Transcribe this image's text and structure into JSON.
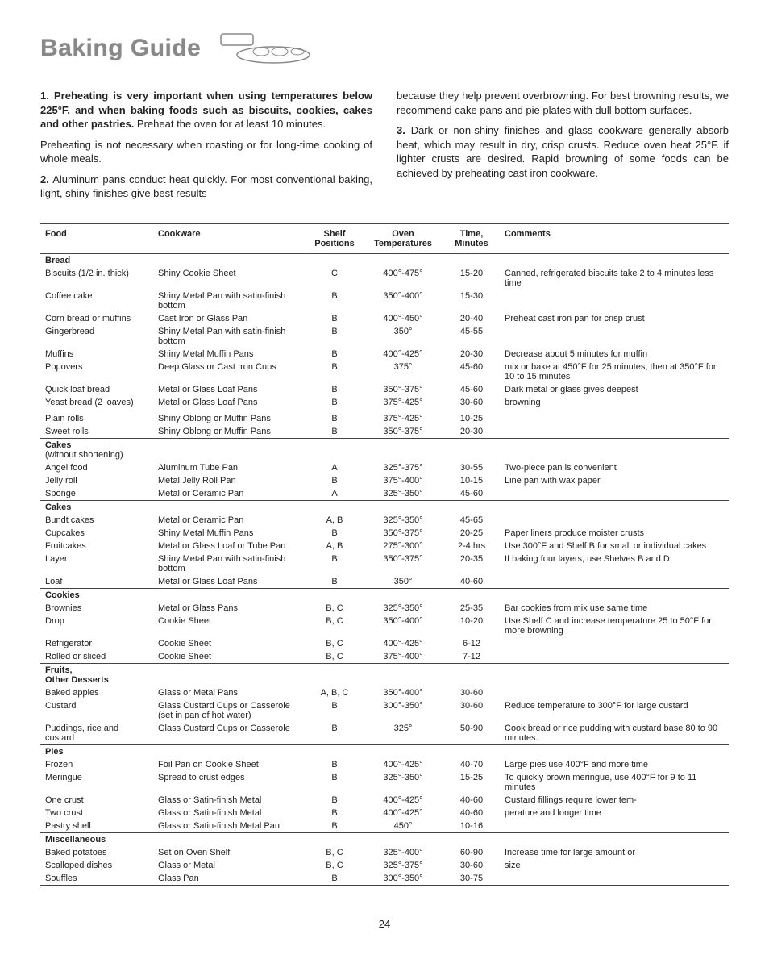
{
  "title": "Baking Guide",
  "intro": {
    "p1_bold": "1. Preheating is very important when using temperatures below 225°F. and when baking foods such as biscuits, cookies, cakes and other pastries.",
    "p1_tail": " Preheat the oven for at least 10 minutes.",
    "p2": "Preheating is not necessary when roasting or for long-time cooking of whole meals.",
    "p3_lead": "2. ",
    "p3": "Aluminum pans conduct heat quickly. For most conventional baking, light, shiny finishes give best results",
    "p4": "because they help prevent overbrowning. For best browning results, we recommend cake pans and pie plates with dull bottom surfaces.",
    "p5_lead": "3. ",
    "p5": "Dark or non-shiny finishes and glass cookware generally absorb heat, which may result in dry, crisp crusts. Reduce oven heat 25°F. if lighter crusts are desired. Rapid browning of some foods can be achieved by preheating cast iron cookware."
  },
  "headers": [
    "Food",
    "Cookware",
    "Shelf Positions",
    "Oven Temperatures",
    "Time, Minutes",
    "Comments"
  ],
  "sections": [
    {
      "name": "Bread",
      "rows": [
        [
          "Biscuits (1/2 in. thick)",
          "Shiny Cookie Sheet",
          "C",
          "400°-475°",
          "15-20",
          "Canned, refrigerated biscuits take 2 to 4 minutes less time"
        ],
        [
          "Coffee cake",
          "Shiny Metal Pan with satin-finish bottom",
          "B",
          "350°-400°",
          "15-30",
          ""
        ],
        [
          "Corn bread or muffins",
          "Cast Iron or Glass Pan",
          "B",
          "400°-450°",
          "20-40",
          "Preheat cast iron pan for crisp crust"
        ],
        [
          "Gingerbread",
          "Shiny Metal Pan with satin-finish bottom",
          "B",
          "350°",
          "45-55",
          ""
        ],
        [
          "Muffins",
          "Shiny Metal Muffin Pans",
          "B",
          "400°-425°",
          "20-30",
          "Decrease about 5 minutes for muffin"
        ],
        [
          "Popovers",
          "Deep Glass or Cast Iron Cups",
          "B",
          "375°",
          "45-60",
          "mix or bake at 450°F for 25 minutes, then at 350°F for 10 to 15 minutes"
        ],
        [
          "Quick loaf bread",
          "Metal or Glass Loaf Pans",
          "B",
          "350°-375°",
          "45-60",
          "Dark metal or glass gives deepest"
        ],
        [
          "Yeast bread (2 loaves)",
          "Metal or Glass Loaf Pans",
          "B",
          "375°-425°",
          "30-60",
          "browning"
        ],
        [
          "",
          "",
          "",
          "",
          "",
          ""
        ],
        [
          "Plain rolls",
          "Shiny Oblong or Muffin Pans",
          "B",
          "375°-425°",
          "10-25",
          ""
        ],
        [
          "Sweet rolls",
          "Shiny Oblong or Muffin Pans",
          "B",
          "350°-375°",
          "20-30",
          ""
        ]
      ]
    },
    {
      "name": "Cakes",
      "subhead": "(without shortening)",
      "rows": [
        [
          "Angel food",
          "Aluminum Tube Pan",
          "A",
          "325°-375°",
          "30-55",
          "Two-piece pan is convenient"
        ],
        [
          "Jelly roll",
          "Metal Jelly Roll Pan",
          "B",
          "375°-400°",
          "10-15",
          "Line pan with wax paper."
        ],
        [
          "Sponge",
          "Metal or Ceramic Pan",
          "A",
          "325°-350°",
          "45-60",
          ""
        ]
      ]
    },
    {
      "name": "Cakes",
      "rows": [
        [
          "Bundt cakes",
          "Metal or Ceramic Pan",
          "A, B",
          "325°-350°",
          "45-65",
          ""
        ],
        [
          "Cupcakes",
          "Shiny Metal Muffin Pans",
          "B",
          "350°-375°",
          "20-25",
          "Paper liners produce moister crusts"
        ],
        [
          "Fruitcakes",
          "Metal or Glass Loaf or Tube Pan",
          "A, B",
          "275°-300°",
          "2-4 hrs",
          "Use 300°F and Shelf B for small or individual cakes"
        ],
        [
          "Layer",
          "Shiny Metal Pan with satin-finish bottom",
          "B",
          "350°-375°",
          "20-35",
          "If baking four layers, use Shelves B and D"
        ],
        [
          "Loaf",
          "Metal or Glass Loaf Pans",
          "B",
          "350°",
          "40-60",
          ""
        ]
      ]
    },
    {
      "name": "Cookies",
      "rows": [
        [
          "Brownies",
          "Metal or Glass Pans",
          "B, C",
          "325°-350°",
          "25-35",
          "Bar cookies from mix use same time"
        ],
        [
          "Drop",
          "Cookie Sheet",
          "B, C",
          "350°-400°",
          "10-20",
          "Use Shelf C and increase temperature 25 to 50°F for more browning"
        ],
        [
          "Refrigerator",
          "Cookie Sheet",
          "B, C",
          "400°-425°",
          "6-12",
          ""
        ],
        [
          "Rolled or sliced",
          "Cookie Sheet",
          "B, C",
          "375°-400°",
          "7-12",
          ""
        ]
      ]
    },
    {
      "name": "Fruits,",
      "subhead": "Other Desserts",
      "subhead_bold": true,
      "rows": [
        [
          "Baked apples",
          "Glass or Metal Pans",
          "A, B, C",
          "350°-400°",
          "30-60",
          ""
        ],
        [
          "Custard",
          "Glass Custard Cups or Casserole (set in pan of hot water)",
          "B",
          "300°-350°",
          "30-60",
          "Reduce temperature to 300°F for large custard"
        ],
        [
          "Puddings, rice and custard",
          "Glass Custard Cups or Casserole",
          "B",
          "325°",
          "50-90",
          "Cook bread or rice pudding with custard base 80 to 90 minutes."
        ]
      ]
    },
    {
      "name": "Pies",
      "rows": [
        [
          "Frozen",
          "Foil Pan on Cookie Sheet",
          "B",
          "400°-425°",
          "40-70",
          "Large pies use 400°F and more time"
        ],
        [
          "Meringue",
          "Spread to crust edges",
          "B",
          "325°-350°",
          "15-25",
          "To quickly brown meringue, use 400°F for 9 to 11 minutes"
        ],
        [
          "One crust",
          "Glass or Satin-finish Metal",
          "B",
          "400°-425°",
          "40-60",
          "Custard fillings require lower tem-"
        ],
        [
          "Two crust",
          "Glass or Satin-finish Metal",
          "B",
          "400°-425°",
          "40-60",
          "perature and longer time"
        ],
        [
          "Pastry shell",
          "Glass or Satin-finish Metal Pan",
          "B",
          "450°",
          "10-16",
          ""
        ]
      ]
    },
    {
      "name": "Miscellaneous",
      "rows": [
        [
          "Baked potatoes",
          "Set on Oven Shelf",
          "B, C",
          "325°-400°",
          "60-90",
          "Increase time for large amount or"
        ],
        [
          "Scalloped dishes",
          "Glass or Metal",
          "B, C",
          "325°-375°",
          "30-60",
          "size"
        ],
        [
          "Souffles",
          "Glass Pan",
          "B",
          "300°-350°",
          "30-75",
          ""
        ]
      ]
    }
  ],
  "page_number": "24"
}
